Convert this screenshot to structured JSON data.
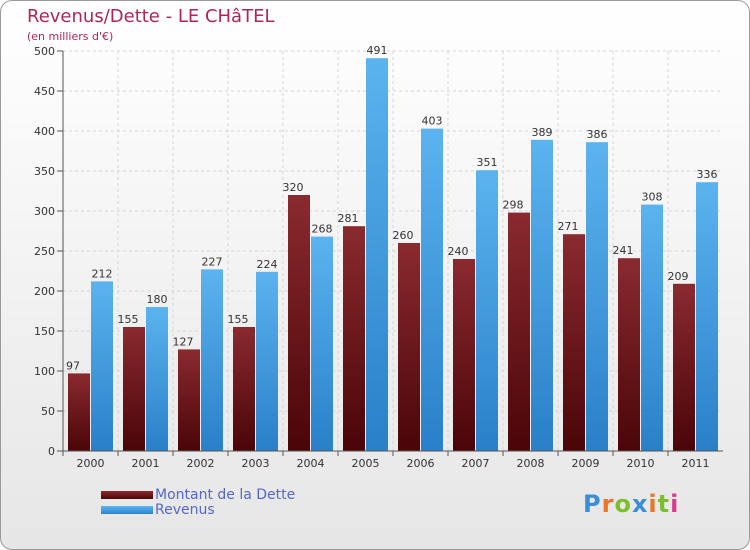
{
  "header": {
    "title": "Revenus/Dette - LE CHâTEL",
    "subtitle": "(en milliers d'€)"
  },
  "chart_data": {
    "type": "bar",
    "categories": [
      "2000",
      "2001",
      "2002",
      "2003",
      "2004",
      "2005",
      "2006",
      "2007",
      "2008",
      "2009",
      "2010",
      "2011"
    ],
    "series": [
      {
        "name": "Montant de la Dette",
        "color": "#7a1a1f",
        "values": [
          97,
          155,
          127,
          155,
          320,
          281,
          260,
          240,
          298,
          271,
          241,
          209
        ]
      },
      {
        "name": "Revenus",
        "color": "#3d9be0",
        "values": [
          212,
          180,
          227,
          224,
          268,
          491,
          403,
          351,
          389,
          386,
          308,
          336
        ]
      }
    ],
    "yticks": [
      0,
      50,
      100,
      150,
      200,
      250,
      300,
      350,
      400,
      450,
      500
    ],
    "ylim": [
      0,
      500
    ],
    "xlabel": "",
    "ylabel": "",
    "grid": true,
    "legend_position": "bottom-left"
  },
  "legend": {
    "debt_label": "Montant de la Dette",
    "revenue_label": "Revenus"
  },
  "logo": {
    "text": "Proxiti",
    "letters": [
      "P",
      "r",
      "o",
      "x",
      "i",
      "t",
      "i"
    ],
    "colors": [
      "#3a8ed8",
      "#e8762b",
      "#7cbf2e",
      "#3a8ed8",
      "#e8762b",
      "#7cbf2e",
      "#d93b8f"
    ]
  }
}
